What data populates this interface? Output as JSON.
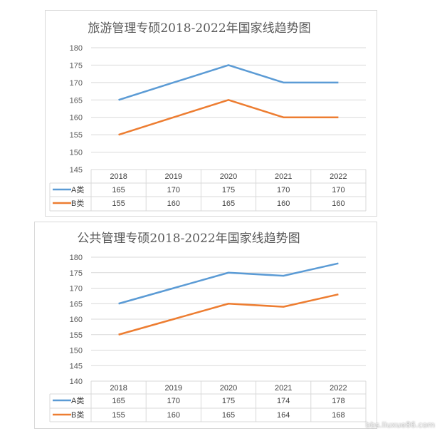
{
  "chart_data": [
    {
      "type": "line",
      "title": "旅游管理专硕2018-2022年国家线趋势图",
      "categories": [
        "2018",
        "2019",
        "2020",
        "2021",
        "2022"
      ],
      "series": [
        {
          "name": "A类",
          "color": "#5b9bd5",
          "values": [
            165,
            170,
            175,
            170,
            170
          ]
        },
        {
          "name": "B类",
          "color": "#ed7d31",
          "values": [
            155,
            160,
            165,
            160,
            160
          ]
        }
      ],
      "ylim": [
        145,
        180
      ],
      "ystep": 5,
      "yticks": [
        "180",
        "175",
        "170",
        "165",
        "160",
        "155",
        "150",
        "145"
      ],
      "grid": true,
      "legend": "data-table"
    },
    {
      "type": "line",
      "title": "公共管理专硕2018-2022年国家线趋势图",
      "categories": [
        "2018",
        "2019",
        "2020",
        "2021",
        "2022"
      ],
      "series": [
        {
          "name": "A类",
          "color": "#5b9bd5",
          "values": [
            165,
            170,
            175,
            174,
            178
          ]
        },
        {
          "name": "B类",
          "color": "#ed7d31",
          "values": [
            155,
            160,
            165,
            164,
            168
          ]
        }
      ],
      "ylim": [
        140,
        180
      ],
      "ystep": 5,
      "yticks": [
        "180",
        "175",
        "170",
        "165",
        "160",
        "155",
        "150",
        "145",
        "140"
      ],
      "grid": true,
      "legend": "data-table"
    }
  ],
  "watermark": "bbs.liuxue86.com"
}
